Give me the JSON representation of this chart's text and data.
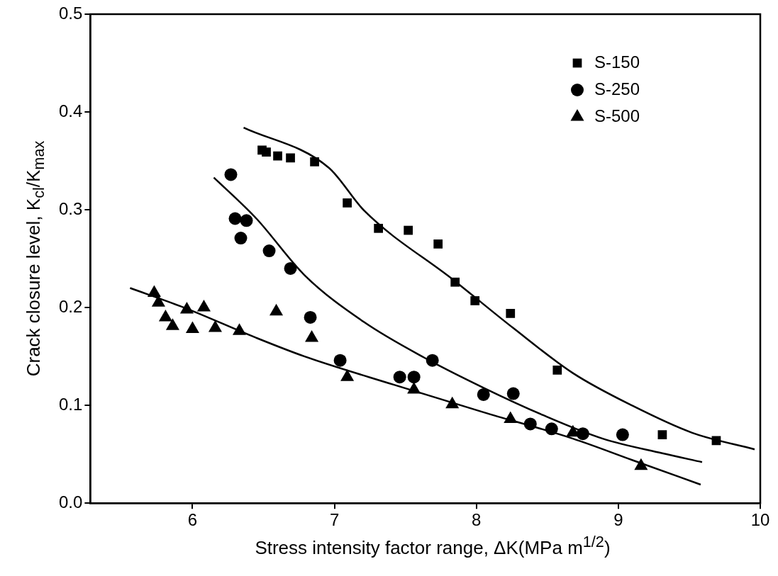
{
  "chart_data": {
    "type": "scatter",
    "xlabel": "Stress intensity factor range, ΔK(MPa m$^{1/2}$)",
    "ylabel": "Crack closure level, K$_{cl}$/K$_{max}$",
    "xlim": [
      5.28,
      10
    ],
    "xticks": [
      6,
      7,
      8,
      9,
      10
    ],
    "ylim": [
      0,
      0.5
    ],
    "yticks": [
      {
        "value": 0,
        "label": "0.0"
      },
      {
        "value": 0.1,
        "label": "0.1"
      },
      {
        "value": 0.2,
        "label": "0.2"
      },
      {
        "value": 0.3,
        "label": "0.3"
      },
      {
        "value": 0.4,
        "label": "0.4"
      },
      {
        "value": 0.5,
        "label": "0.5"
      }
    ],
    "grid": false,
    "legend": "top right",
    "series": [
      {
        "name": "S-150",
        "color": "#000000",
        "marker": "square",
        "x": [
          6.49,
          6.52,
          6.6,
          6.69,
          6.86,
          7.09,
          7.31,
          7.52,
          7.73,
          7.85,
          7.99,
          8.24,
          8.57,
          9.31,
          9.69
        ],
        "values": [
          0.361,
          0.359,
          0.355,
          0.353,
          0.349,
          0.307,
          0.281,
          0.279,
          0.265,
          0.226,
          0.207,
          0.194,
          0.136,
          0.07,
          0.064
        ]
      },
      {
        "name": "S-250",
        "color": "#000000",
        "marker": "circle",
        "x": [
          6.27,
          6.3,
          6.38,
          6.34,
          6.54,
          6.69,
          6.83,
          7.04,
          7.46,
          7.56,
          7.69,
          8.05,
          8.26,
          8.38,
          8.53,
          8.75,
          9.03
        ],
        "values": [
          0.336,
          0.291,
          0.289,
          0.271,
          0.258,
          0.24,
          0.19,
          0.146,
          0.129,
          0.129,
          0.146,
          0.111,
          0.112,
          0.081,
          0.076,
          0.071,
          0.07
        ]
      },
      {
        "name": "S-500",
        "color": "#000000",
        "marker": "triangle",
        "x": [
          5.73,
          5.76,
          5.81,
          5.86,
          5.96,
          6.0,
          6.08,
          6.16,
          6.33,
          6.59,
          6.84,
          7.09,
          7.56,
          7.83,
          8.24,
          8.68,
          9.16
        ],
        "values": [
          0.215,
          0.205,
          0.19,
          0.181,
          0.198,
          0.178,
          0.2,
          0.179,
          0.176,
          0.196,
          0.169,
          0.129,
          0.116,
          0.101,
          0.086,
          0.072,
          0.038
        ]
      },
      {
        "type": "line",
        "color": "#000000",
        "marker": "none",
        "x": [
          6.36,
          6.96,
          7.21,
          7.84,
          8.26,
          8.68,
          9.1,
          9.52,
          9.96
        ],
        "values": [
          0.384,
          0.343,
          0.299,
          0.228,
          0.179,
          0.133,
          0.0996,
          0.072,
          0.055
        ]
      },
      {
        "type": "line",
        "color": "#000000",
        "marker": "none",
        "x": [
          6.15,
          6.45,
          6.79,
          7.21,
          7.63,
          8.05,
          8.47,
          8.89,
          9.31,
          9.59
        ],
        "values": [
          0.333,
          0.291,
          0.233,
          0.185,
          0.149,
          0.118,
          0.09,
          0.066,
          0.051,
          0.042
        ]
      },
      {
        "type": "line",
        "color": "#000000",
        "marker": "none",
        "x": [
          5.56,
          5.94,
          6.45,
          6.79,
          7.42,
          8.05,
          8.68,
          9.1,
          9.58
        ],
        "values": [
          0.22,
          0.2,
          0.169,
          0.15,
          0.121,
          0.093,
          0.066,
          0.044,
          0.019
        ]
      }
    ]
  }
}
